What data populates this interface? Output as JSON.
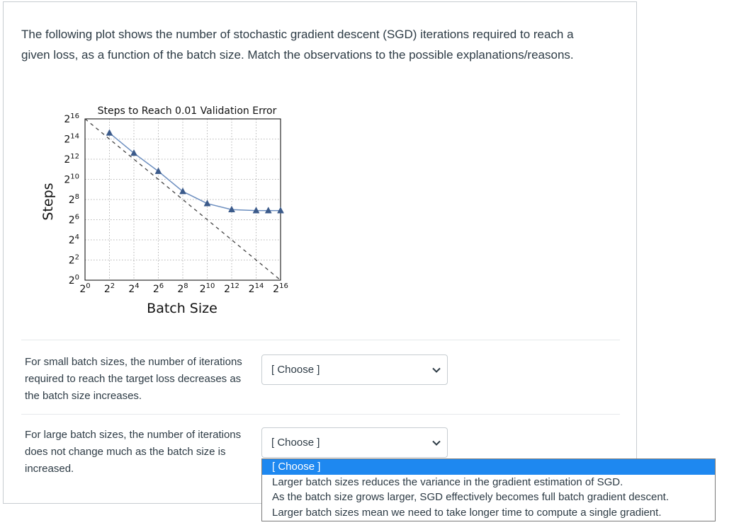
{
  "question": {
    "text": "The following plot shows the number of stochastic gradient descent (SGD) iterations required to reach a given loss, as a function of the batch size. Match the observations to the possible explanations/reasons."
  },
  "chart_data": {
    "type": "line",
    "title": "Steps to Reach 0.01 Validation Error",
    "xlabel": "Batch Size",
    "ylabel": "Steps",
    "x_scale": "log2",
    "y_scale": "log2",
    "xlim_exp": [
      0,
      16
    ],
    "ylim_exp": [
      0,
      16
    ],
    "x_ticks": [
      {
        "base": "2",
        "exp": "0"
      },
      {
        "base": "2",
        "exp": "2"
      },
      {
        "base": "2",
        "exp": "4"
      },
      {
        "base": "2",
        "exp": "6"
      },
      {
        "base": "2",
        "exp": "8"
      },
      {
        "base": "2",
        "exp": "10"
      },
      {
        "base": "2",
        "exp": "12"
      },
      {
        "base": "2",
        "exp": "14"
      },
      {
        "base": "2",
        "exp": "16"
      }
    ],
    "y_ticks": [
      {
        "base": "2",
        "exp": "0"
      },
      {
        "base": "2",
        "exp": "2"
      },
      {
        "base": "2",
        "exp": "4"
      },
      {
        "base": "2",
        "exp": "6"
      },
      {
        "base": "2",
        "exp": "8"
      },
      {
        "base": "2",
        "exp": "10"
      },
      {
        "base": "2",
        "exp": "12"
      },
      {
        "base": "2",
        "exp": "14"
      },
      {
        "base": "2",
        "exp": "16"
      }
    ],
    "grid": true,
    "series": [
      {
        "style": "solid-blue-triangles",
        "color": "#6c8ebf",
        "marker_color": "#3b5a8a",
        "x_exp": [
          2,
          4,
          6,
          8,
          10,
          12,
          14,
          15,
          16
        ],
        "y_exp": [
          14.6,
          12.6,
          10.8,
          8.8,
          7.6,
          7.0,
          6.9,
          6.9,
          6.9
        ]
      },
      {
        "style": "dashed-black",
        "color": "#444444",
        "x_exp": [
          0,
          16
        ],
        "y_exp": [
          16,
          0
        ]
      }
    ]
  },
  "items": [
    {
      "statement": "For small batch sizes, the number of iterations required to reach the target loss decreases as the batch size increases.",
      "selected": "[ Choose ]"
    },
    {
      "statement": "For large batch sizes, the number of iterations does not change much as the batch size is increased.",
      "selected": "[ Choose ]"
    }
  ],
  "dropdown": {
    "options": [
      "[ Choose ]",
      "Larger batch sizes reduces the variance in the gradient estimation of SGD.",
      "As the batch size grows larger, SGD effectively becomes full batch gradient descent.",
      "Larger batch sizes mean we need to take longer time to compute a single gradient."
    ],
    "highlighted_index": 0
  },
  "colors": {
    "text": "#2d3b45",
    "border": "#c7cdd1",
    "highlight": "#1e88f0"
  }
}
